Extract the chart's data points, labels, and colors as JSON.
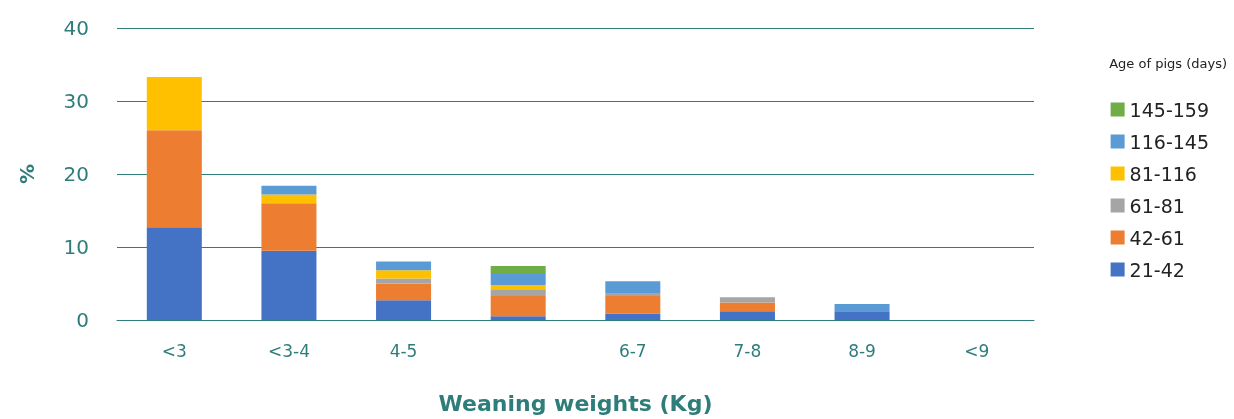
{
  "chart_data": {
    "type": "bar",
    "stacked": true,
    "xlabel": "Weaning weights (Kg)",
    "ylabel": "%",
    "legend_title": "Age of pigs (days)",
    "legend": "right",
    "grid": "y",
    "categories": [
      "<3",
      "<3-4",
      "4-5",
      null,
      "6-7",
      "7-8",
      "8-9",
      "<9"
    ],
    "ylim": [
      0,
      40
    ],
    "yticks": [
      0,
      10,
      20,
      30,
      40
    ],
    "series": [
      {
        "name": "21-42",
        "color": "#4472c4",
        "values": [
          12.7,
          9.5,
          2.7,
          0.5,
          0.9,
          1.2,
          1.2,
          null
        ]
      },
      {
        "name": "42-61",
        "color": "#ed7d31",
        "values": [
          13.3,
          6.5,
          2.3,
          2.8,
          2.4,
          1.2,
          null,
          null
        ]
      },
      {
        "name": "61-81",
        "color": "#a5a5a5",
        "values": [
          null,
          null,
          0.7,
          0.9,
          0.4,
          0.7,
          null,
          null
        ]
      },
      {
        "name": "81-116",
        "color": "#ffc000",
        "values": [
          7.3,
          1.2,
          1.1,
          0.6,
          null,
          null,
          null,
          null
        ]
      },
      {
        "name": "116-145",
        "color": "#5b9bd5",
        "values": [
          null,
          1.2,
          1.2,
          1.5,
          1.6,
          null,
          1.0,
          null
        ]
      },
      {
        "name": "145-159",
        "color": "#70ad47",
        "values": [
          null,
          null,
          null,
          1.1,
          null,
          null,
          null,
          null
        ]
      }
    ]
  }
}
